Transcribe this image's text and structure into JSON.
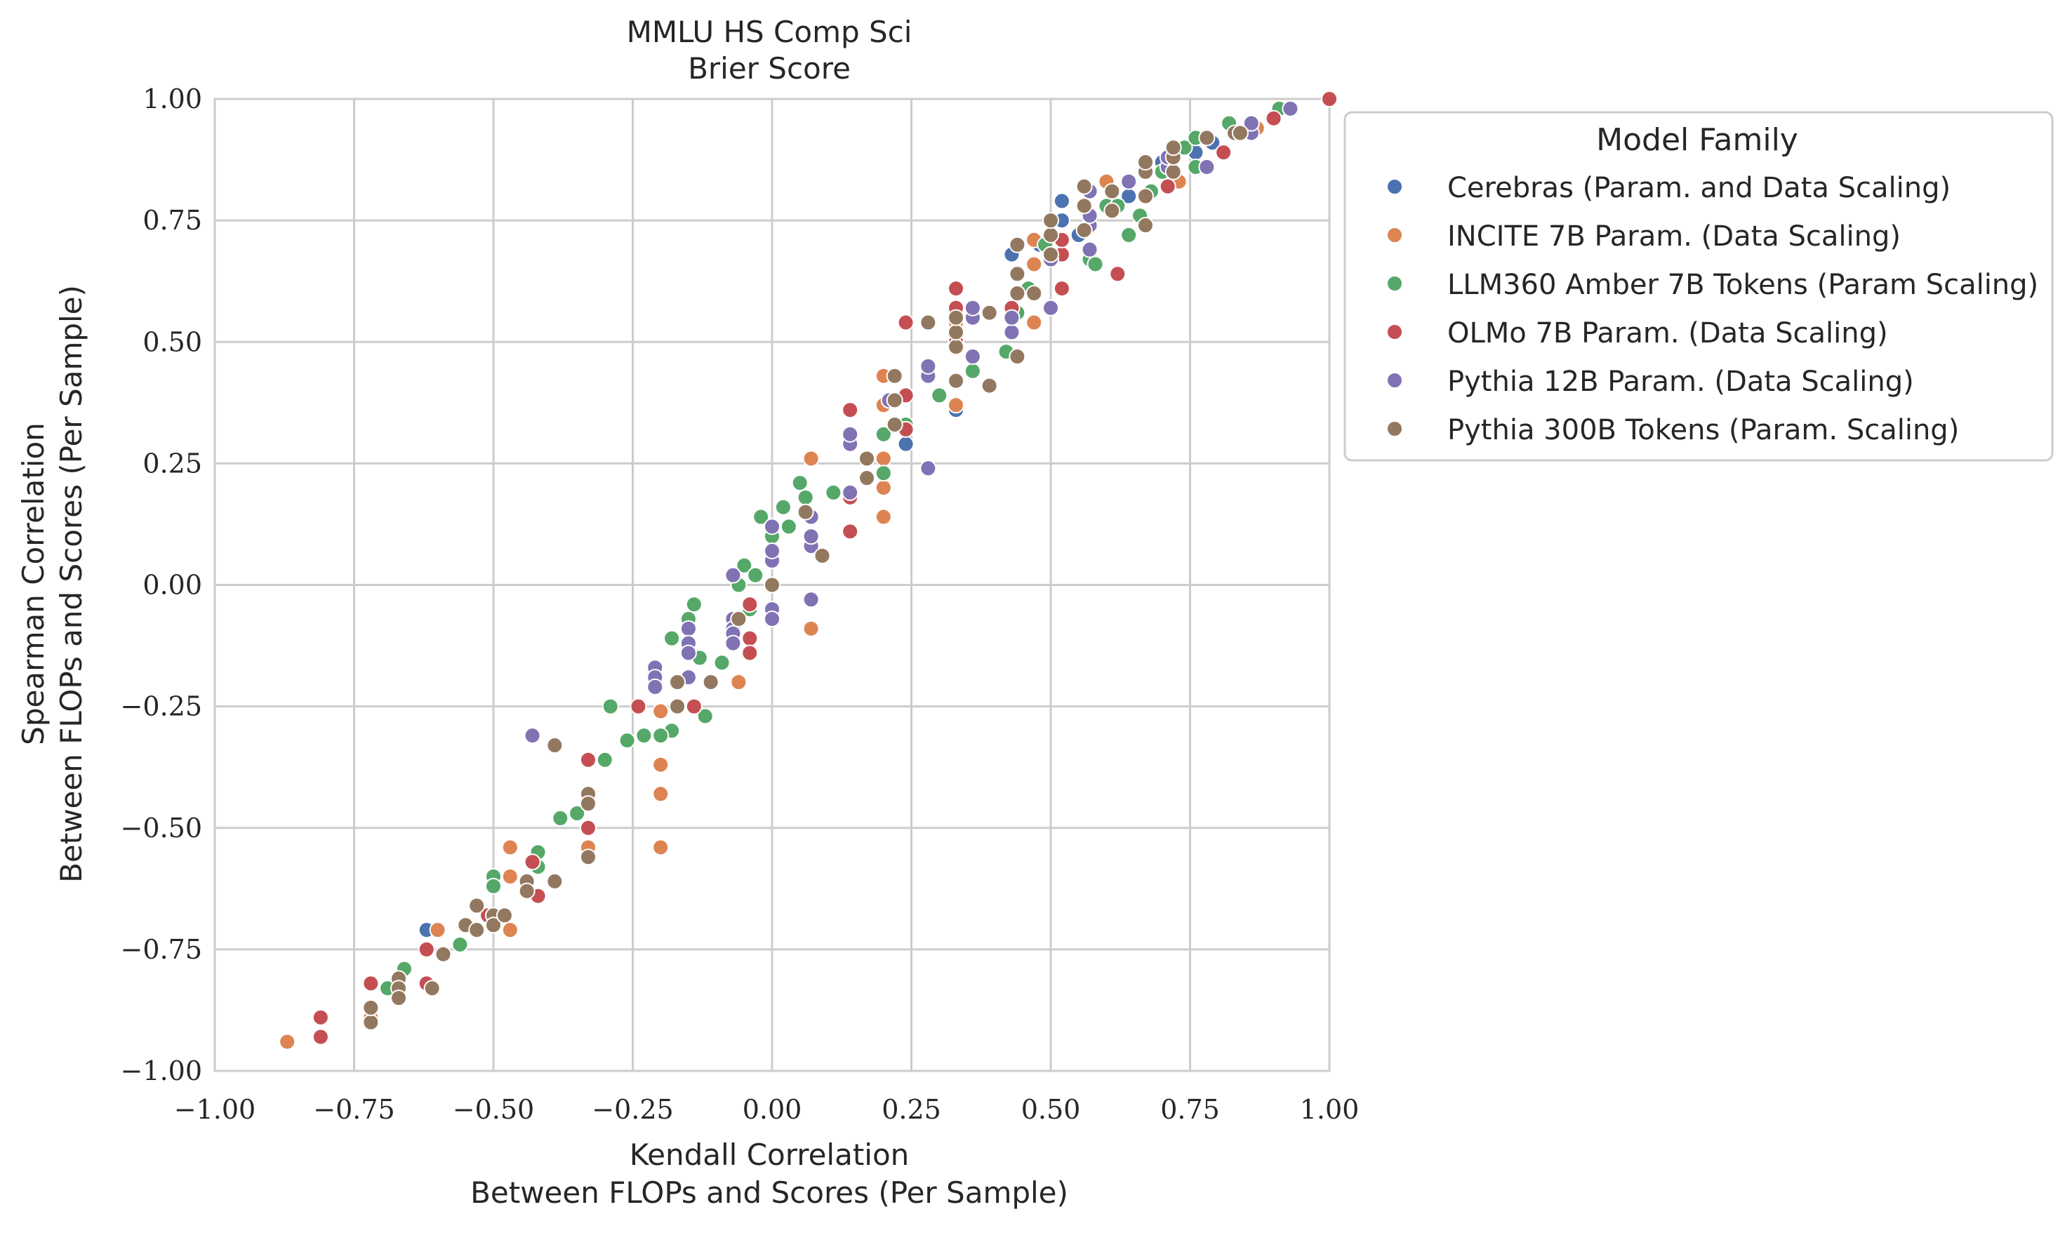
{
  "chart_data": {
    "type": "scatter",
    "title": "MMLU HS Comp Sci",
    "subtitle": "Brier Score",
    "xlabel": "Kendall Correlation",
    "xlabel2": "Between FLOPs and Scores (Per Sample)",
    "ylabel": "Spearman Correlation",
    "ylabel2": "Between FLOPs and Scores (Per Sample)",
    "xlim": [
      -1.0,
      1.0
    ],
    "ylim": [
      -1.0,
      1.0
    ],
    "xticks": [
      -1.0,
      -0.75,
      -0.5,
      -0.25,
      0.0,
      0.25,
      0.5,
      0.75,
      1.0
    ],
    "yticks": [
      -1.0,
      -0.75,
      -0.5,
      -0.25,
      0.0,
      0.25,
      0.5,
      0.75,
      1.0
    ],
    "xtick_labels": [
      "−1.00",
      "−0.75",
      "−0.50",
      "−0.25",
      "0.00",
      "0.25",
      "0.50",
      "0.75",
      "1.00"
    ],
    "ytick_labels": [
      "−1.00",
      "−0.75",
      "−0.50",
      "−0.25",
      "0.00",
      "0.25",
      "0.50",
      "0.75",
      "1.00"
    ],
    "grid": true,
    "legend_title": "Model Family",
    "legend_position": "outside-right",
    "series": [
      {
        "name": "Cerebras (Param. and Data Scaling)",
        "color": "#4c72b0",
        "points": [
          [
            -0.62,
            -0.71
          ],
          [
            0.33,
            0.36
          ],
          [
            0.24,
            0.29
          ],
          [
            0.43,
            0.68
          ],
          [
            0.52,
            0.79
          ],
          [
            0.52,
            0.75
          ],
          [
            0.6,
            0.78
          ],
          [
            0.64,
            0.8
          ],
          [
            0.7,
            0.87
          ],
          [
            0.76,
            0.89
          ],
          [
            0.79,
            0.91
          ],
          [
            0.55,
            0.72
          ],
          [
            0.48,
            0.7
          ]
        ]
      },
      {
        "name": "INCITE 7B Param. (Data Scaling)",
        "color": "#dd8452",
        "points": [
          [
            -0.87,
            -0.94
          ],
          [
            -0.72,
            -0.89
          ],
          [
            -0.6,
            -0.71
          ],
          [
            -0.47,
            -0.54
          ],
          [
            -0.47,
            -0.6
          ],
          [
            -0.47,
            -0.71
          ],
          [
            -0.33,
            -0.54
          ],
          [
            -0.33,
            -0.5
          ],
          [
            -0.2,
            -0.26
          ],
          [
            -0.2,
            -0.37
          ],
          [
            -0.2,
            -0.43
          ],
          [
            -0.2,
            -0.54
          ],
          [
            -0.06,
            -0.2
          ],
          [
            0.07,
            -0.09
          ],
          [
            0.07,
            -0.03
          ],
          [
            0.07,
            0.26
          ],
          [
            0.2,
            0.14
          ],
          [
            0.2,
            0.2
          ],
          [
            0.2,
            0.26
          ],
          [
            0.2,
            0.37
          ],
          [
            0.2,
            0.43
          ],
          [
            0.33,
            0.37
          ],
          [
            0.33,
            0.54
          ],
          [
            0.47,
            0.54
          ],
          [
            0.47,
            0.66
          ],
          [
            0.47,
            0.71
          ],
          [
            0.6,
            0.83
          ],
          [
            0.73,
            0.83
          ],
          [
            0.87,
            0.94
          ],
          [
            1.0,
            1.0
          ]
        ]
      },
      {
        "name": "LLM360 Amber 7B Tokens (Param Scaling)",
        "color": "#55a868",
        "points": [
          [
            -0.69,
            -0.83
          ],
          [
            -0.66,
            -0.79
          ],
          [
            -0.56,
            -0.74
          ],
          [
            -0.5,
            -0.6
          ],
          [
            -0.5,
            -0.62
          ],
          [
            -0.42,
            -0.55
          ],
          [
            -0.42,
            -0.58
          ],
          [
            -0.38,
            -0.48
          ],
          [
            -0.35,
            -0.47
          ],
          [
            -0.33,
            -0.45
          ],
          [
            -0.3,
            -0.36
          ],
          [
            -0.29,
            -0.25
          ],
          [
            -0.26,
            -0.32
          ],
          [
            -0.23,
            -0.31
          ],
          [
            -0.18,
            -0.3
          ],
          [
            -0.2,
            -0.31
          ],
          [
            -0.18,
            -0.11
          ],
          [
            -0.15,
            -0.07
          ],
          [
            -0.14,
            -0.04
          ],
          [
            -0.13,
            -0.15
          ],
          [
            -0.12,
            -0.27
          ],
          [
            -0.09,
            -0.16
          ],
          [
            -0.06,
            0.0
          ],
          [
            -0.05,
            0.04
          ],
          [
            -0.03,
            0.02
          ],
          [
            -0.02,
            0.14
          ],
          [
            -0.04,
            -0.05
          ],
          [
            0.0,
            0.1
          ],
          [
            0.02,
            0.16
          ],
          [
            0.03,
            0.12
          ],
          [
            0.05,
            0.21
          ],
          [
            0.06,
            0.18
          ],
          [
            0.11,
            0.19
          ],
          [
            0.2,
            0.23
          ],
          [
            0.2,
            0.31
          ],
          [
            0.24,
            0.33
          ],
          [
            0.3,
            0.39
          ],
          [
            0.36,
            0.44
          ],
          [
            0.42,
            0.48
          ],
          [
            0.44,
            0.56
          ],
          [
            0.46,
            0.61
          ],
          [
            0.49,
            0.7
          ],
          [
            0.57,
            0.67
          ],
          [
            0.58,
            0.66
          ],
          [
            0.6,
            0.78
          ],
          [
            0.62,
            0.78
          ],
          [
            0.64,
            0.72
          ],
          [
            0.66,
            0.76
          ],
          [
            0.68,
            0.81
          ],
          [
            0.7,
            0.85
          ],
          [
            0.74,
            0.9
          ],
          [
            0.76,
            0.86
          ],
          [
            0.76,
            0.92
          ],
          [
            0.82,
            0.95
          ],
          [
            0.91,
            0.98
          ]
        ]
      },
      {
        "name": "OLMo 7B Param. (Data Scaling)",
        "color": "#c44e52",
        "points": [
          [
            -0.81,
            -0.89
          ],
          [
            -0.81,
            -0.93
          ],
          [
            -0.72,
            -0.82
          ],
          [
            -0.62,
            -0.75
          ],
          [
            -0.62,
            -0.82
          ],
          [
            -0.53,
            -0.71
          ],
          [
            -0.51,
            -0.68
          ],
          [
            -0.43,
            -0.57
          ],
          [
            -0.42,
            -0.64
          ],
          [
            -0.33,
            -0.36
          ],
          [
            -0.33,
            -0.5
          ],
          [
            -0.24,
            -0.25
          ],
          [
            -0.14,
            -0.25
          ],
          [
            -0.04,
            -0.04
          ],
          [
            -0.04,
            -0.11
          ],
          [
            -0.04,
            -0.14
          ],
          [
            0.14,
            0.11
          ],
          [
            0.14,
            0.18
          ],
          [
            0.14,
            0.36
          ],
          [
            0.24,
            0.39
          ],
          [
            0.24,
            0.32
          ],
          [
            0.24,
            0.54
          ],
          [
            0.33,
            0.5
          ],
          [
            0.33,
            0.57
          ],
          [
            0.33,
            0.61
          ],
          [
            0.43,
            0.57
          ],
          [
            0.52,
            0.61
          ],
          [
            0.52,
            0.68
          ],
          [
            0.52,
            0.71
          ],
          [
            0.62,
            0.64
          ],
          [
            0.71,
            0.82
          ],
          [
            0.81,
            0.89
          ],
          [
            0.9,
            0.96
          ],
          [
            1.0,
            1.0
          ]
        ]
      },
      {
        "name": "Pythia 12B Param. (Data Scaling)",
        "color": "#8172b3",
        "points": [
          [
            -0.43,
            -0.31
          ],
          [
            -0.21,
            -0.17
          ],
          [
            -0.21,
            -0.19
          ],
          [
            -0.21,
            -0.21
          ],
          [
            -0.15,
            -0.09
          ],
          [
            -0.15,
            -0.12
          ],
          [
            -0.15,
            -0.14
          ],
          [
            -0.15,
            -0.19
          ],
          [
            -0.07,
            -0.07
          ],
          [
            -0.07,
            -0.09
          ],
          [
            -0.07,
            -0.1
          ],
          [
            -0.07,
            -0.12
          ],
          [
            -0.07,
            0.02
          ],
          [
            0.0,
            -0.05
          ],
          [
            0.0,
            -0.07
          ],
          [
            0.0,
            0.05
          ],
          [
            0.0,
            0.07
          ],
          [
            0.0,
            0.12
          ],
          [
            0.07,
            -0.03
          ],
          [
            0.07,
            0.08
          ],
          [
            0.07,
            0.1
          ],
          [
            0.07,
            0.14
          ],
          [
            0.14,
            0.19
          ],
          [
            0.14,
            0.29
          ],
          [
            0.14,
            0.31
          ],
          [
            0.21,
            0.38
          ],
          [
            0.28,
            0.24
          ],
          [
            0.28,
            0.43
          ],
          [
            0.28,
            0.45
          ],
          [
            0.36,
            0.47
          ],
          [
            0.36,
            0.55
          ],
          [
            0.36,
            0.57
          ],
          [
            0.43,
            0.52
          ],
          [
            0.43,
            0.55
          ],
          [
            0.5,
            0.57
          ],
          [
            0.5,
            0.67
          ],
          [
            0.57,
            0.69
          ],
          [
            0.57,
            0.74
          ],
          [
            0.57,
            0.76
          ],
          [
            0.57,
            0.81
          ],
          [
            0.64,
            0.83
          ],
          [
            0.71,
            0.86
          ],
          [
            0.71,
            0.88
          ],
          [
            0.78,
            0.86
          ],
          [
            0.86,
            0.93
          ],
          [
            0.86,
            0.95
          ],
          [
            0.93,
            0.98
          ]
        ]
      },
      {
        "name": "Pythia 300B Tokens (Param. Scaling)",
        "color": "#937860",
        "points": [
          [
            -0.72,
            -0.9
          ],
          [
            -0.72,
            -0.87
          ],
          [
            -0.67,
            -0.81
          ],
          [
            -0.67,
            -0.83
          ],
          [
            -0.67,
            -0.85
          ],
          [
            -0.61,
            -0.83
          ],
          [
            -0.59,
            -0.76
          ],
          [
            -0.55,
            -0.7
          ],
          [
            -0.53,
            -0.66
          ],
          [
            -0.53,
            -0.71
          ],
          [
            -0.5,
            -0.68
          ],
          [
            -0.5,
            -0.7
          ],
          [
            -0.48,
            -0.68
          ],
          [
            -0.44,
            -0.61
          ],
          [
            -0.44,
            -0.63
          ],
          [
            -0.39,
            -0.33
          ],
          [
            -0.39,
            -0.61
          ],
          [
            -0.33,
            -0.43
          ],
          [
            -0.33,
            -0.45
          ],
          [
            -0.33,
            -0.56
          ],
          [
            -0.17,
            -0.2
          ],
          [
            -0.17,
            -0.25
          ],
          [
            -0.11,
            -0.2
          ],
          [
            -0.06,
            -0.07
          ],
          [
            0.0,
            0.0
          ],
          [
            0.06,
            0.15
          ],
          [
            0.09,
            0.06
          ],
          [
            0.17,
            0.22
          ],
          [
            0.17,
            0.26
          ],
          [
            0.22,
            0.33
          ],
          [
            0.22,
            0.38
          ],
          [
            0.22,
            0.43
          ],
          [
            0.28,
            0.54
          ],
          [
            0.33,
            0.42
          ],
          [
            0.33,
            0.49
          ],
          [
            0.33,
            0.52
          ],
          [
            0.33,
            0.55
          ],
          [
            0.39,
            0.41
          ],
          [
            0.39,
            0.56
          ],
          [
            0.44,
            0.47
          ],
          [
            0.44,
            0.6
          ],
          [
            0.44,
            0.64
          ],
          [
            0.44,
            0.7
          ],
          [
            0.47,
            0.6
          ],
          [
            0.5,
            0.68
          ],
          [
            0.5,
            0.72
          ],
          [
            0.5,
            0.75
          ],
          [
            0.56,
            0.73
          ],
          [
            0.56,
            0.78
          ],
          [
            0.56,
            0.82
          ],
          [
            0.61,
            0.77
          ],
          [
            0.61,
            0.81
          ],
          [
            0.67,
            0.74
          ],
          [
            0.67,
            0.8
          ],
          [
            0.67,
            0.85
          ],
          [
            0.67,
            0.87
          ],
          [
            0.72,
            0.85
          ],
          [
            0.72,
            0.88
          ],
          [
            0.72,
            0.9
          ],
          [
            0.78,
            0.92
          ],
          [
            0.83,
            0.93
          ],
          [
            0.84,
            0.93
          ]
        ]
      }
    ]
  }
}
